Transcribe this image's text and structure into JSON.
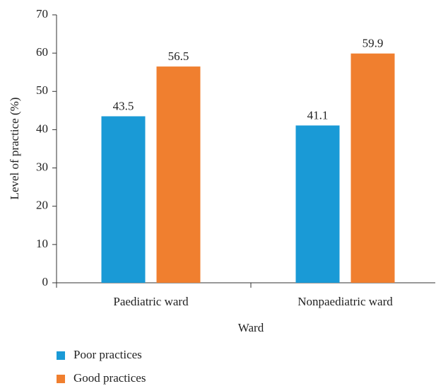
{
  "chart_data": {
    "type": "bar",
    "xlabel": "Ward",
    "ylabel": "Level of practice (%)",
    "categories": [
      "Paediatric ward",
      "Nonpaediatric ward"
    ],
    "series": [
      {
        "name": "Poor practices",
        "color": "#1a9ad6",
        "values": [
          43.5,
          41.1
        ]
      },
      {
        "name": "Good practices",
        "color": "#f07f2f",
        "values": [
          56.5,
          59.9
        ]
      }
    ],
    "ylim": [
      0,
      70
    ],
    "yticks": [
      0,
      10,
      20,
      30,
      40,
      50,
      60,
      70
    ],
    "grid": false,
    "legend": "bottom-left"
  }
}
